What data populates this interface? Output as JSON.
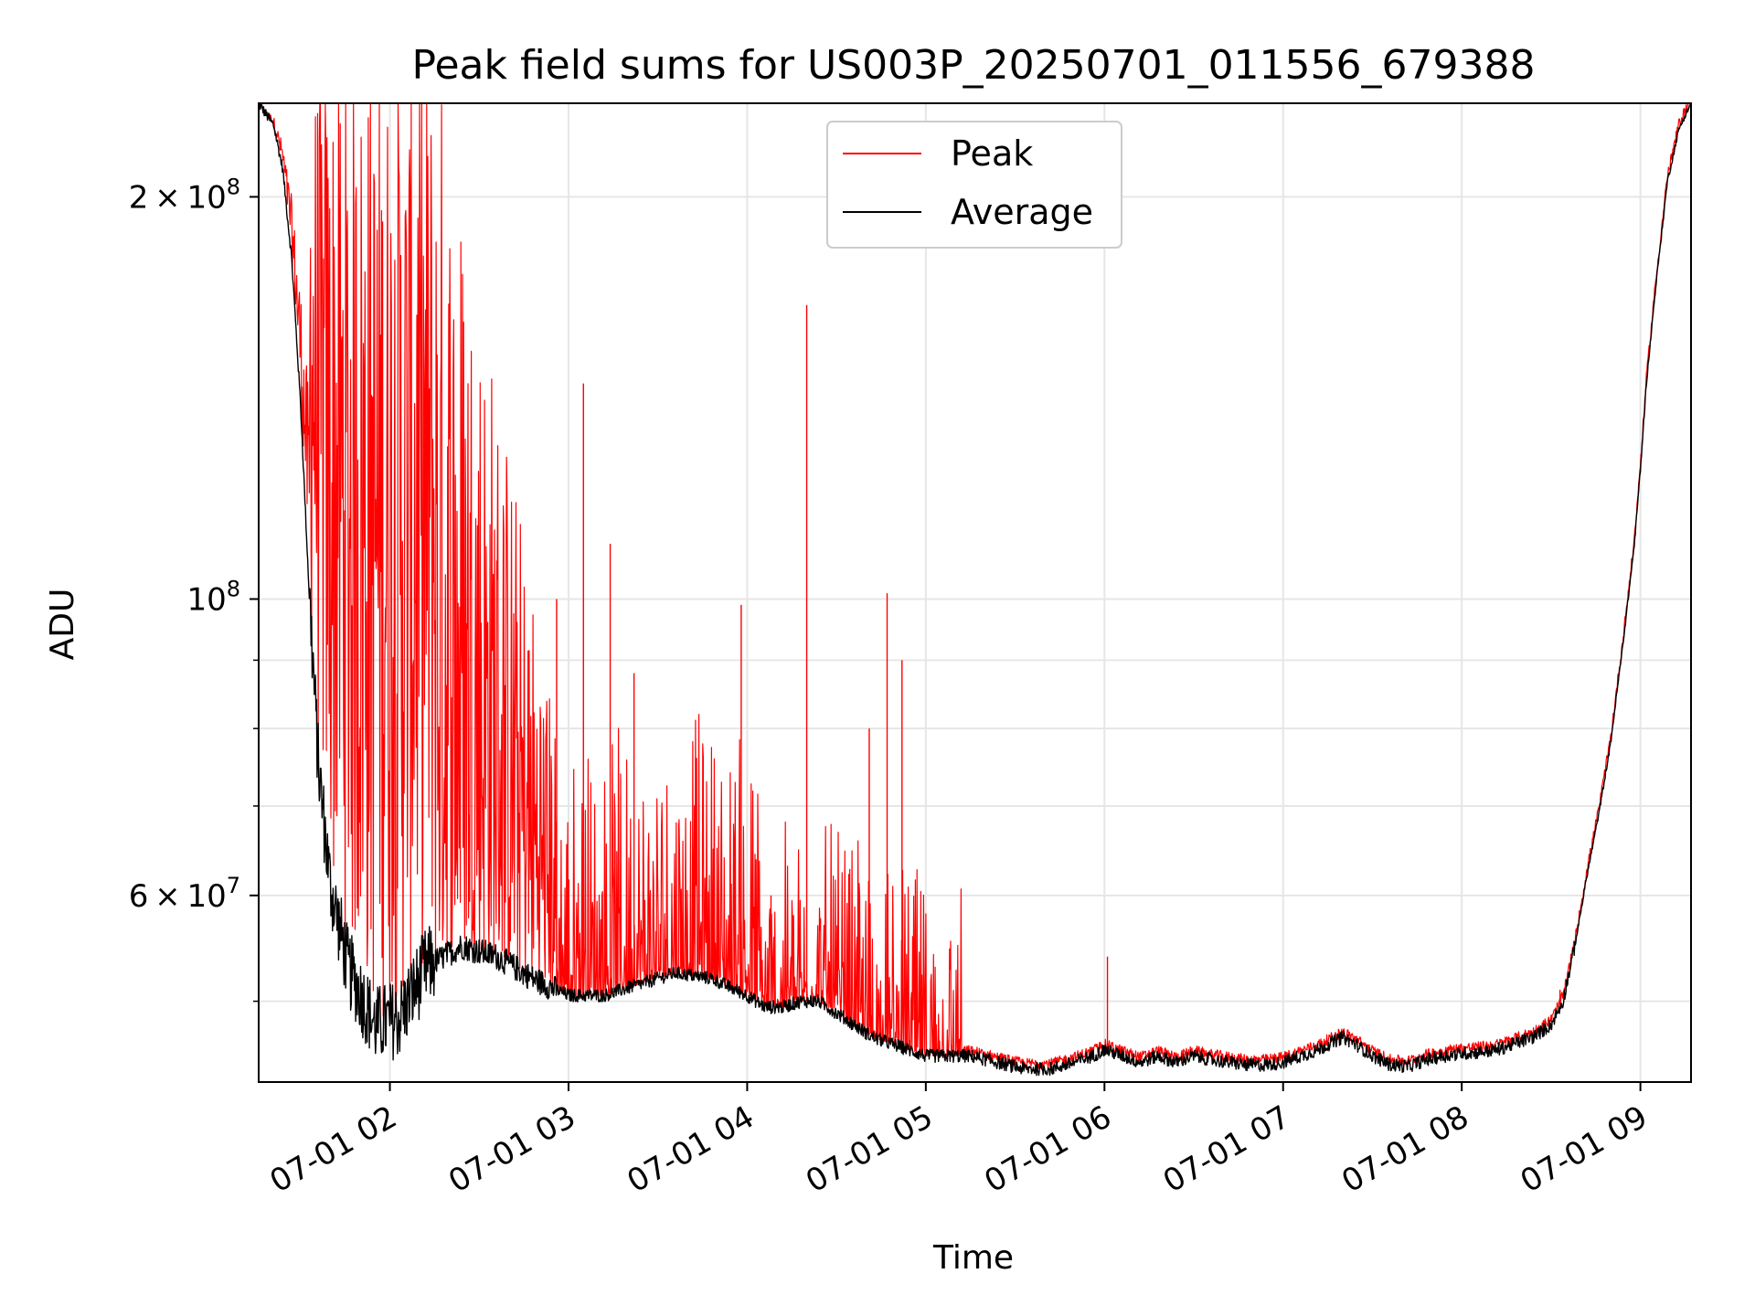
{
  "chart_data": {
    "type": "line",
    "title": "Peak field sums for US003P_20250701_011556_679388",
    "xlabel": "Time",
    "ylabel": "ADU",
    "yscale": "log",
    "xlim": [
      "2025-07-01T01:15:56",
      "2025-07-01T09:17:00"
    ],
    "ylim": [
      43500000,
      235000000
    ],
    "grid": true,
    "legend_position": "upper center",
    "x_ticks": [
      "2025-07-01T02:00",
      "2025-07-01T03:00",
      "2025-07-01T04:00",
      "2025-07-01T05:00",
      "2025-07-01T06:00",
      "2025-07-01T07:00",
      "2025-07-01T08:00",
      "2025-07-01T09:00"
    ],
    "x_tick_labels": [
      "07-01 02",
      "07-01 03",
      "07-01 04",
      "07-01 05",
      "07-01 06",
      "07-01 07",
      "07-01 08",
      "07-01 09"
    ],
    "y_tick_values": [
      200000000,
      100000000,
      60000000
    ],
    "y_tick_labels": [
      {
        "mantissa": "2",
        "times": "×",
        "base": "10",
        "exp": "8"
      },
      {
        "mantissa": "",
        "times": "",
        "base": "10",
        "exp": "8"
      },
      {
        "mantissa": "6",
        "times": "×",
        "base": "10",
        "exp": "7"
      }
    ],
    "y_minor_ticks": [
      50000000,
      70000000,
      80000000,
      90000000
    ],
    "series": [
      {
        "name": "Peak",
        "color": "#ff0000",
        "style": "noisy-upper-envelope",
        "spikes": [
          {
            "x": "2025-07-01T02:56:00",
            "y": 100000000
          },
          {
            "x": "2025-07-01T03:05:00",
            "y": 145000000
          },
          {
            "x": "2025-07-01T03:14:00",
            "y": 110000000
          },
          {
            "x": "2025-07-01T03:22:00",
            "y": 88000000
          },
          {
            "x": "2025-07-01T03:37:00",
            "y": 68000000
          },
          {
            "x": "2025-07-01T03:58:00",
            "y": 99000000
          },
          {
            "x": "2025-07-01T04:08:00",
            "y": 60000000
          },
          {
            "x": "2025-07-01T04:20:00",
            "y": 166000000
          },
          {
            "x": "2025-07-01T04:41:00",
            "y": 80000000
          },
          {
            "x": "2025-07-01T04:47:00",
            "y": 101000000
          },
          {
            "x": "2025-07-01T04:52:00",
            "y": 90000000
          },
          {
            "x": "2025-07-01T06:01:00",
            "y": 54000000
          },
          {
            "x": "2025-07-01T08:33:00",
            "y": 51000000
          }
        ]
      },
      {
        "name": "Average",
        "color": "#000000",
        "x": [
          "2025-07-01T01:15:56",
          "2025-07-01T01:21:00",
          "2025-07-01T01:24:00",
          "2025-07-01T01:27:00",
          "2025-07-01T01:30:00",
          "2025-07-01T01:33:00",
          "2025-07-01T01:36:00",
          "2025-07-01T01:40:00",
          "2025-07-01T01:46:00",
          "2025-07-01T01:55:00",
          "2025-07-01T02:03:00",
          "2025-07-01T02:12:00",
          "2025-07-01T02:24:00",
          "2025-07-01T02:36:00",
          "2025-07-01T02:48:00",
          "2025-07-01T03:00:00",
          "2025-07-01T03:12:00",
          "2025-07-01T03:24:00",
          "2025-07-01T03:36:00",
          "2025-07-01T03:48:00",
          "2025-07-01T04:00:00",
          "2025-07-01T04:06:00",
          "2025-07-01T04:12:00",
          "2025-07-01T04:18:00",
          "2025-07-01T04:24:00",
          "2025-07-01T04:30:00",
          "2025-07-01T04:36:00",
          "2025-07-01T04:42:00",
          "2025-07-01T04:48:00",
          "2025-07-01T04:54:00",
          "2025-07-01T05:00:00",
          "2025-07-01T05:08:00",
          "2025-07-01T05:15:00",
          "2025-07-01T05:24:00",
          "2025-07-01T05:33:00",
          "2025-07-01T05:42:00",
          "2025-07-01T05:50:00",
          "2025-07-01T05:56:00",
          "2025-07-01T06:00:00",
          "2025-07-01T06:06:00",
          "2025-07-01T06:12:00",
          "2025-07-01T06:18:00",
          "2025-07-01T06:24:00",
          "2025-07-01T06:30:00",
          "2025-07-01T06:36:00",
          "2025-07-01T06:42:00",
          "2025-07-01T06:48:00",
          "2025-07-01T06:54:00",
          "2025-07-01T07:00:00",
          "2025-07-01T07:06:00",
          "2025-07-01T07:12:00",
          "2025-07-01T07:20:00",
          "2025-07-01T07:24:00",
          "2025-07-01T07:30:00",
          "2025-07-01T07:36:00",
          "2025-07-01T07:42:00",
          "2025-07-01T07:48:00",
          "2025-07-01T07:54:00",
          "2025-07-01T08:00:00",
          "2025-07-01T08:06:00",
          "2025-07-01T08:12:00",
          "2025-07-01T08:18:00",
          "2025-07-01T08:24:00",
          "2025-07-01T08:30:00",
          "2025-07-01T08:34:00",
          "2025-07-01T08:38:00",
          "2025-07-01T08:42:00",
          "2025-07-01T08:46:00",
          "2025-07-01T08:50:00",
          "2025-07-01T08:54:00",
          "2025-07-01T08:58:00",
          "2025-07-01T09:00:00",
          "2025-07-01T09:02:00",
          "2025-07-01T09:05:00",
          "2025-07-01T09:09:00",
          "2025-07-01T09:13:00",
          "2025-07-01T09:17:00"
        ],
        "y": [
          235000000,
          226000000,
          210000000,
          180000000,
          140000000,
          100000000,
          75000000,
          61000000,
          53000000,
          48000000,
          48500000,
          53000000,
          55000000,
          54000000,
          52000000,
          50500000,
          50500000,
          51500000,
          52500000,
          52000000,
          50500000,
          49500000,
          49500000,
          50000000,
          50000000,
          49000000,
          48000000,
          47000000,
          46500000,
          46000000,
          45500000,
          45500000,
          45500000,
          45000000,
          44500000,
          44500000,
          45000000,
          45500000,
          46000000,
          45500000,
          45000000,
          45500000,
          45000000,
          45500000,
          45200000,
          45000000,
          44800000,
          44800000,
          45000000,
          45500000,
          46000000,
          47000000,
          46500000,
          45500000,
          44800000,
          44700000,
          45200000,
          45500000,
          45700000,
          45800000,
          46000000,
          46500000,
          47000000,
          48000000,
          50000000,
          55000000,
          62000000,
          69000000,
          78000000,
          92000000,
          110000000,
          125000000,
          145000000,
          170000000,
          205000000,
          225000000,
          235000000
        ]
      }
    ]
  }
}
